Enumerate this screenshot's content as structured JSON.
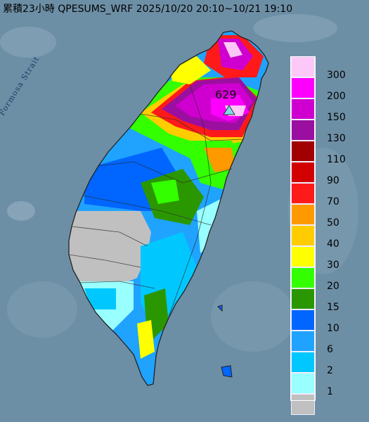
{
  "title": "累積23小時 QPESUMS_WRF 2025/10/20 20:10~10/21 19:10",
  "strait_label": "Formosa Strait",
  "max_label": "629",
  "colors": {
    "sea": "#6d8fa6",
    "land_outline": "#222222",
    "marker_fill": "#7fdce8"
  },
  "legend": [
    {
      "label": "300",
      "color": "#fdc8f8"
    },
    {
      "label": "200",
      "color": "#fd00fd"
    },
    {
      "label": "150",
      "color": "#cf00cf"
    },
    {
      "label": "130",
      "color": "#9b0fa0"
    },
    {
      "label": "110",
      "color": "#a00000"
    },
    {
      "label": "90",
      "color": "#d20000"
    },
    {
      "label": "70",
      "color": "#ff1a1a"
    },
    {
      "label": "50",
      "color": "#ff9900"
    },
    {
      "label": "40",
      "color": "#ffcc00"
    },
    {
      "label": "30",
      "color": "#ffff00"
    },
    {
      "label": "20",
      "color": "#33ff00"
    },
    {
      "label": "15",
      "color": "#2b9700"
    },
    {
      "label": "10",
      "color": "#0066ff"
    },
    {
      "label": "6",
      "color": "#1fa3ff"
    },
    {
      "label": "2",
      "color": "#00c8ff"
    },
    {
      "label": "1",
      "color": "#99ffff"
    },
    {
      "label": "",
      "color": "#c0c0c0"
    }
  ]
}
